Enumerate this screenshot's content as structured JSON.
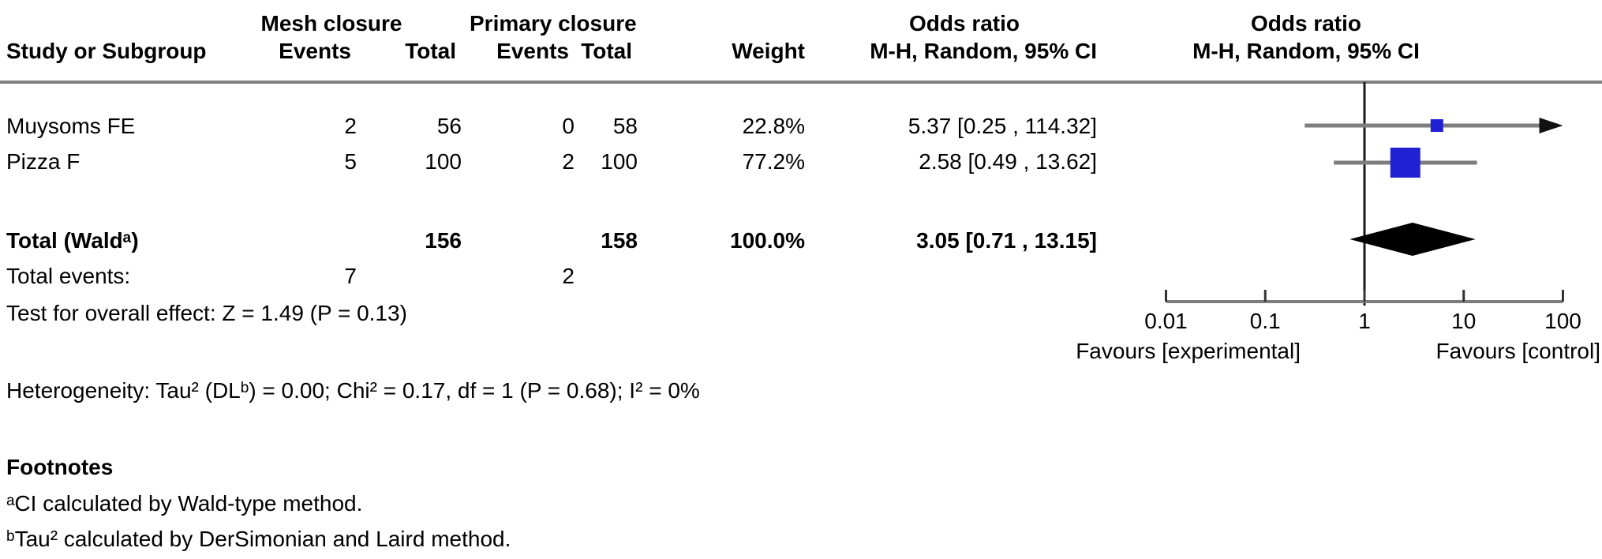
{
  "table": {
    "header": {
      "group1": "Mesh closure",
      "group2": "Primary closure",
      "or_left": "Odds ratio",
      "or_right": "Odds ratio",
      "study": "Study or Subgroup",
      "events1": "Events",
      "total1": "Total",
      "events2": "Events",
      "total2": "Total",
      "weight": "Weight",
      "mh_left": "M-H, Random, 95% CI",
      "mh_right": "M-H, Random, 95% CI"
    },
    "rows": [
      {
        "study": "Muysoms FE",
        "e1": "2",
        "t1": "56",
        "e2": "0",
        "t2": "58",
        "weight": "22.8%",
        "ci": "5.37 [0.25 , 114.32]"
      },
      {
        "study": "Pizza F",
        "e1": "5",
        "t1": "100",
        "e2": "2",
        "t2": "100",
        "weight": "77.2%",
        "ci": "2.58 [0.49 , 13.62]"
      }
    ],
    "total_row": {
      "label": "Total (Waldᵃ)",
      "t1": "156",
      "t2": "158",
      "weight": "100.0%",
      "ci": "3.05 [0.71 , 13.15]"
    },
    "total_events": {
      "label": "Total events:",
      "e1": "7",
      "e2": "2"
    },
    "overall_effect": "Test for overall effect: Z = 1.49 (P = 0.13)",
    "heterogeneity": "Heterogeneity: Tau² (DLᵇ) = 0.00; Chi² = 0.17, df = 1 (P = 0.68); I² = 0%"
  },
  "footnotes": {
    "heading": "Footnotes",
    "a": "ᵃCI calculated by Wald-type method.",
    "b": "ᵇTau² calculated by DerSimonian and Laird method."
  },
  "plot": {
    "axis_tick_labels": [
      "0.01",
      "0.1",
      "1",
      "10",
      "100"
    ],
    "favours_left": "Favours [experimental]",
    "favours_right": "Favours [control]",
    "marker_color": "#2121d4",
    "line_color": "#7d7d7d",
    "null_line_color": "#1a1a1a",
    "diamond_color": "#000000"
  },
  "chart_data": {
    "type": "scatter",
    "variant": "forest-plot",
    "x_scale": "log10",
    "xlim": [
      0.01,
      100
    ],
    "x_ticks": [
      0.01,
      0.1,
      1,
      10,
      100
    ],
    "null_line": 1,
    "effect_measure": "Odds ratio, M-H, Random, 95% CI",
    "studies": [
      {
        "name": "Muysoms FE",
        "events_mesh": 2,
        "total_mesh": 56,
        "events_primary": 0,
        "total_primary": 58,
        "weight_pct": 22.8,
        "or": 5.37,
        "ci_low": 0.25,
        "ci_high": 114.32
      },
      {
        "name": "Pizza F",
        "events_mesh": 5,
        "total_mesh": 100,
        "events_primary": 2,
        "total_primary": 100,
        "weight_pct": 77.2,
        "or": 2.58,
        "ci_low": 0.49,
        "ci_high": 13.62
      }
    ],
    "total": {
      "label": "Total (Wald)",
      "total_mesh": 156,
      "total_primary": 158,
      "weight_pct": 100.0,
      "or": 3.05,
      "ci_low": 0.71,
      "ci_high": 13.15,
      "total_events_mesh": 7,
      "total_events_primary": 2,
      "z": 1.49,
      "p": 0.13
    },
    "heterogeneity": {
      "tau2": 0.0,
      "chi2": 0.17,
      "df": 1,
      "p": 0.68,
      "i2_pct": 0
    },
    "annotations": {
      "left": "Favours [experimental]",
      "right": "Favours [control]"
    },
    "legend": "none",
    "grid": false
  }
}
